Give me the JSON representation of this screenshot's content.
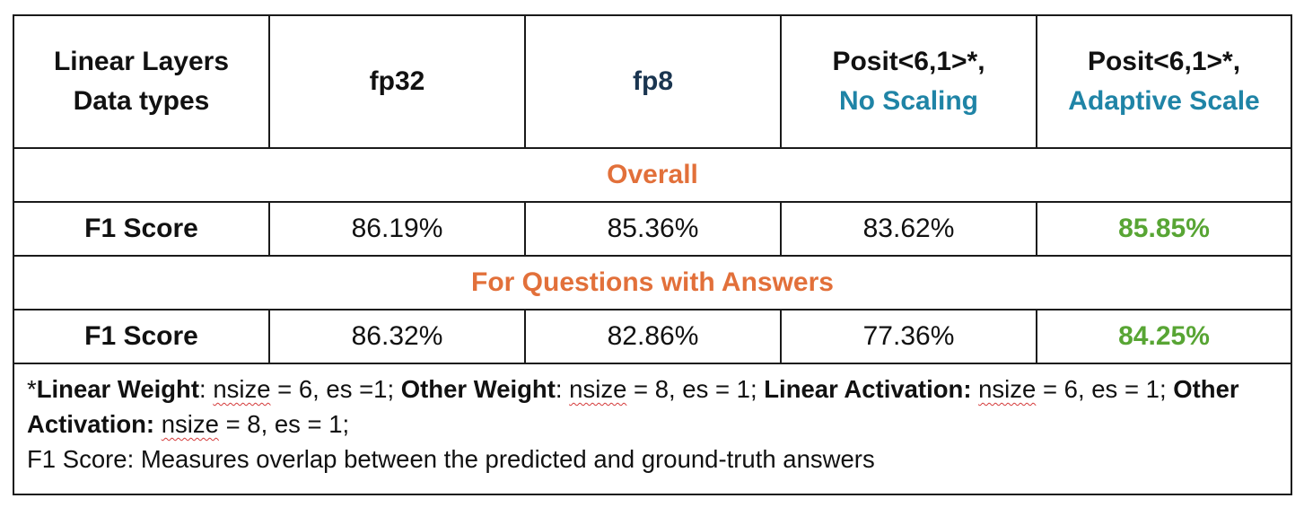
{
  "header": {
    "col0_line1": "Linear Layers",
    "col0_line2": "Data types",
    "col1": "fp32",
    "col2": "fp8",
    "col3_line1": "Posit<6,1>*,",
    "col3_line2": "No Scaling",
    "col4_line1": "Posit<6,1>*,",
    "col4_line2": "Adaptive Scale"
  },
  "sections": [
    {
      "title": "Overall",
      "row": {
        "label": "F1 Score",
        "values": [
          "86.19%",
          "85.36%",
          "83.62%",
          "85.85%"
        ]
      }
    },
    {
      "title": "For Questions with Answers",
      "row": {
        "label": "F1 Score",
        "values": [
          "86.32%",
          "82.86%",
          "77.36%",
          "84.25%"
        ]
      }
    }
  ],
  "footnote": {
    "star": "*",
    "t1_bold": "Linear Weight",
    "t1_colon": ": ",
    "nsize_word": "nsize",
    "t1_rest": " = 6, es =1; ",
    "t2_bold": "Other Weight",
    "t2_colon": ": ",
    "t2_rest": " = 8, es = 1; ",
    "t3_bold": "Linear Activation:",
    "t3_rest": " = 6, es = 1; ",
    "t4_bold": "Other Activation:",
    "t4_rest": " = 8, es = 1;",
    "definition": "F1 Score: Measures overlap between the predicted and ground-truth answers"
  },
  "colors": {
    "section_title": "#e2703a",
    "best_value": "#58a534",
    "fp8_header": "#1a3550",
    "scaling_header": "#1f84a6",
    "border": "#1a1a1a"
  }
}
